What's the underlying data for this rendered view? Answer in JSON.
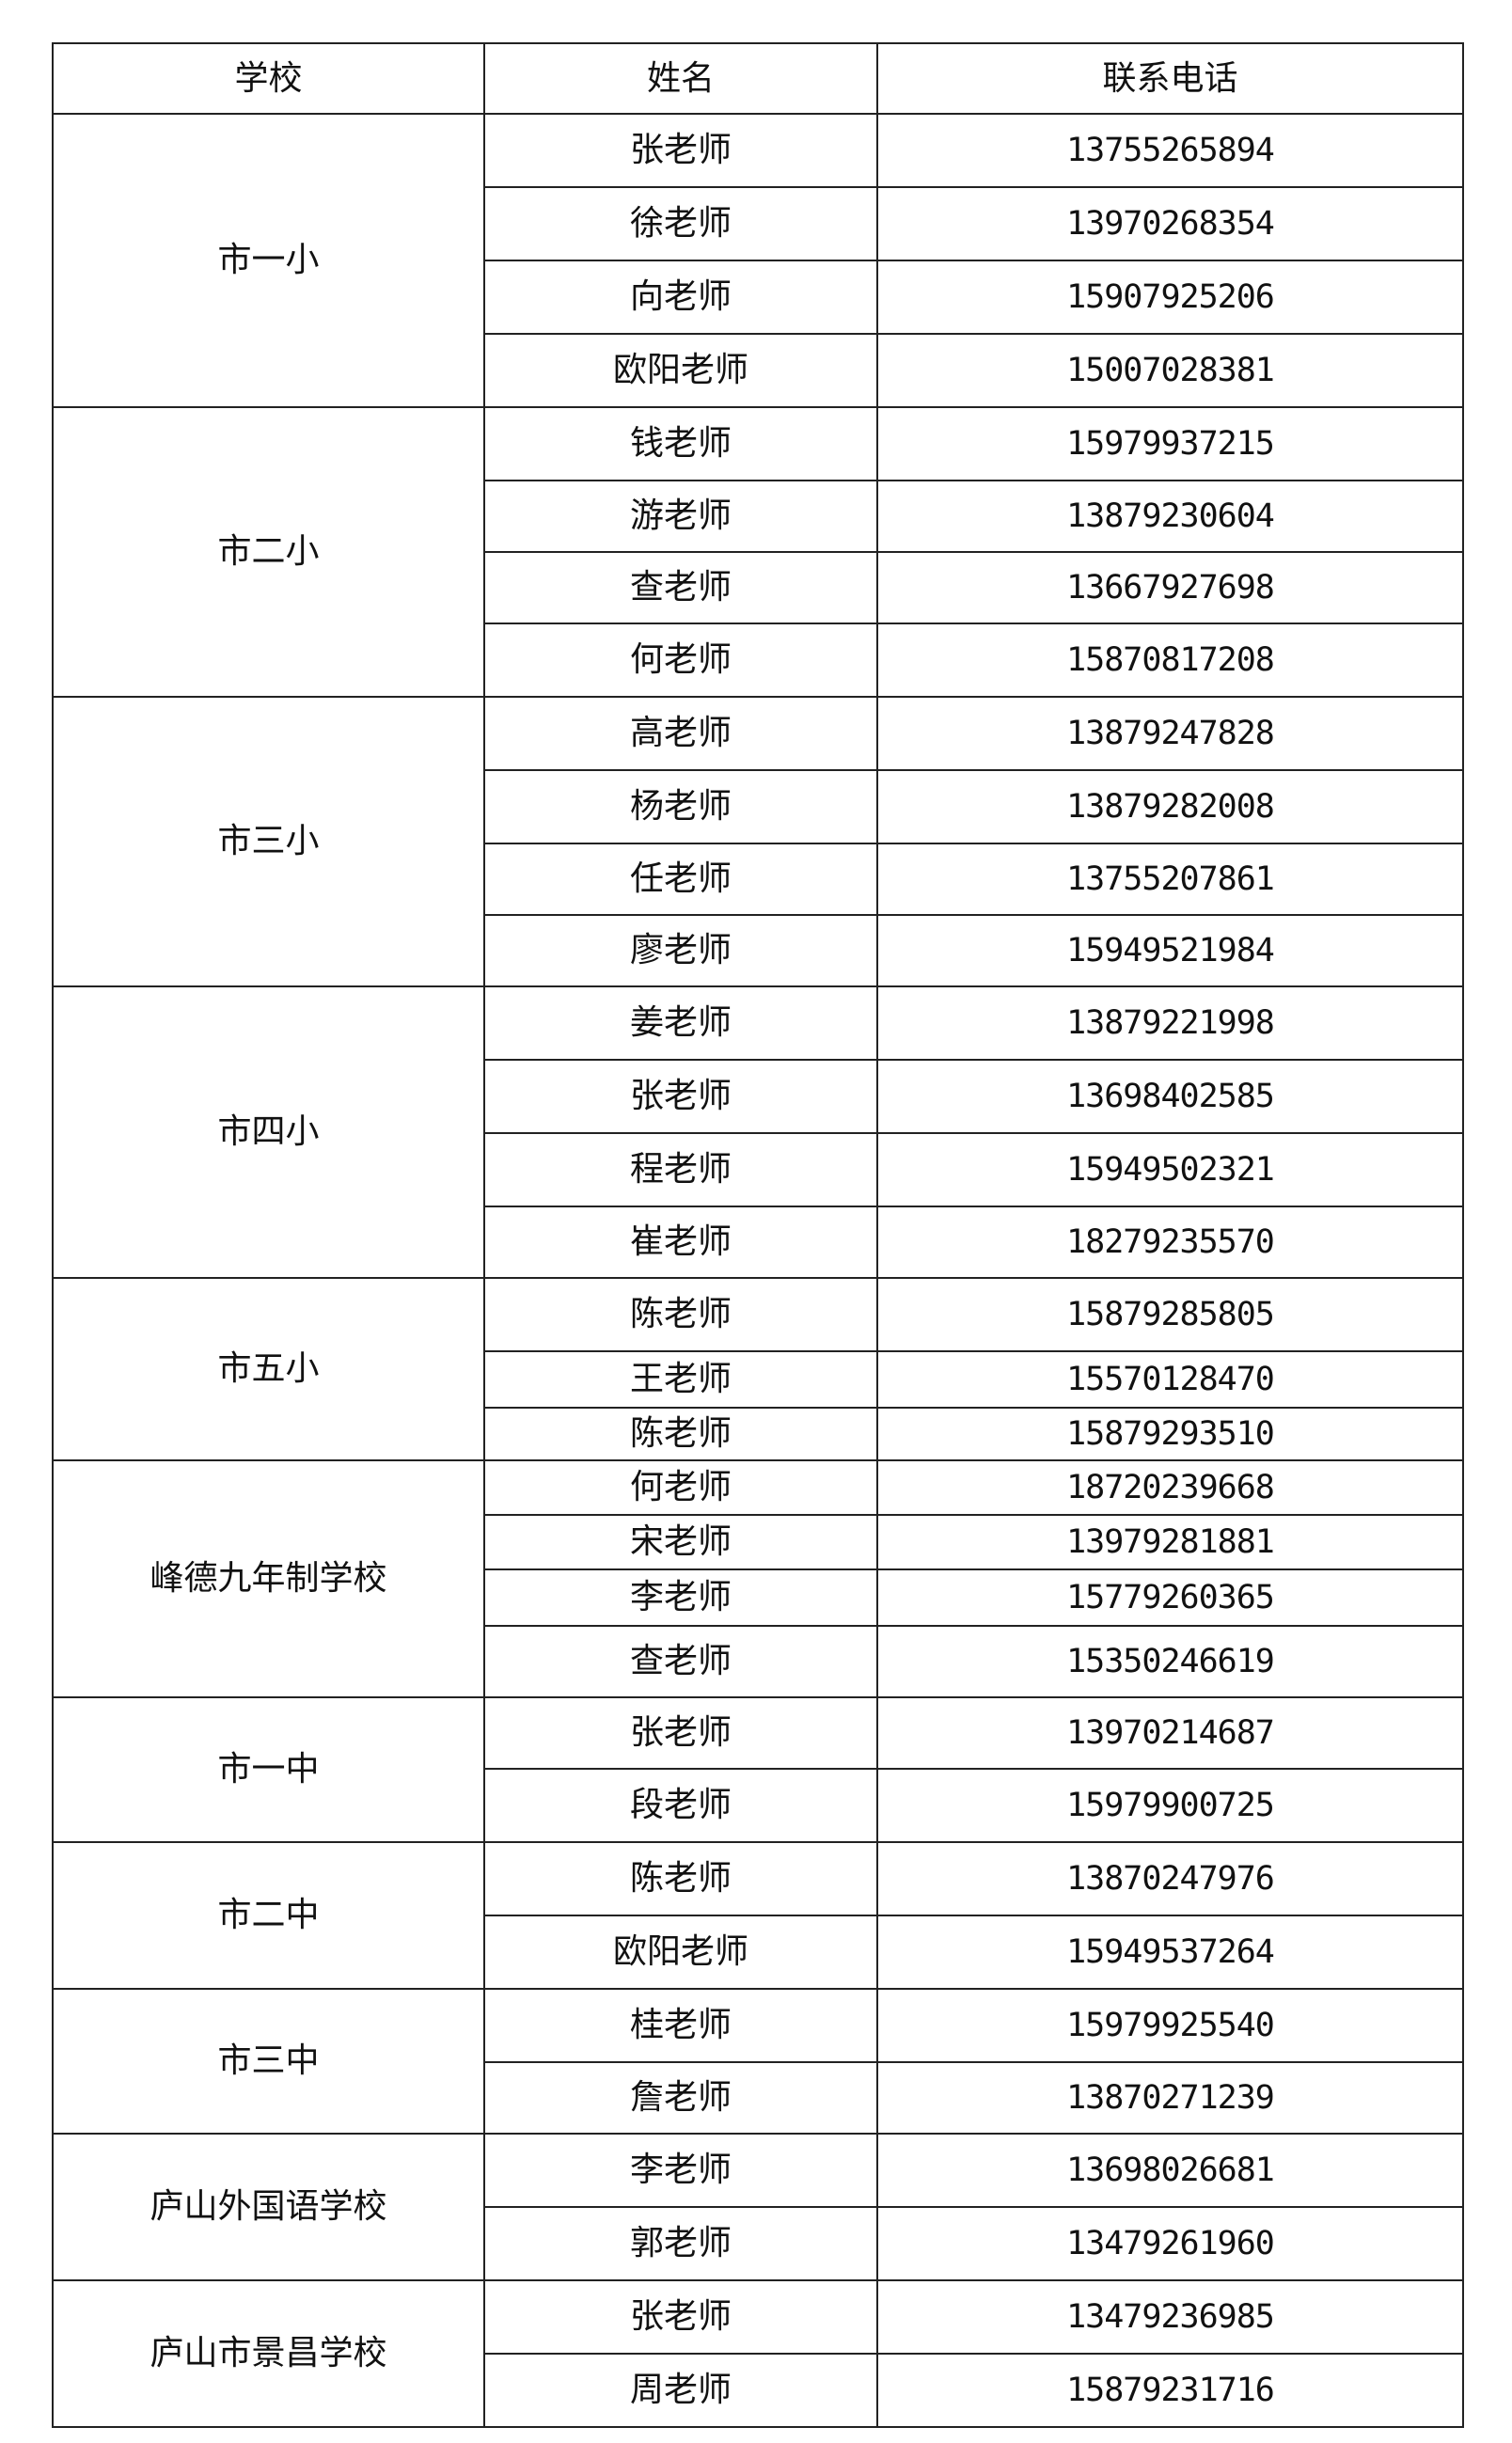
{
  "headers": {
    "school": "学校",
    "name": "姓名",
    "phone": "联系电话"
  },
  "groups": [
    {
      "school": "市一小",
      "contacts": [
        {
          "name": "张老师",
          "phone": "13755265894"
        },
        {
          "name": "徐老师",
          "phone": "13970268354"
        },
        {
          "name": "向老师",
          "phone": "15907925206"
        },
        {
          "name": "欧阳老师",
          "phone": "15007028381"
        }
      ]
    },
    {
      "school": "市二小",
      "contacts": [
        {
          "name": "钱老师",
          "phone": "15979937215"
        },
        {
          "name": "游老师",
          "phone": "13879230604"
        },
        {
          "name": "查老师",
          "phone": "13667927698"
        },
        {
          "name": "何老师",
          "phone": "15870817208"
        }
      ]
    },
    {
      "school": "市三小",
      "contacts": [
        {
          "name": "高老师",
          "phone": "13879247828"
        },
        {
          "name": "杨老师",
          "phone": "13879282008"
        },
        {
          "name": "任老师",
          "phone": "13755207861"
        },
        {
          "name": "廖老师",
          "phone": "15949521984"
        }
      ]
    },
    {
      "school": "市四小",
      "contacts": [
        {
          "name": "姜老师",
          "phone": "13879221998"
        },
        {
          "name": "张老师",
          "phone": "13698402585"
        },
        {
          "name": "程老师",
          "phone": "15949502321"
        },
        {
          "name": "崔老师",
          "phone": "18279235570"
        }
      ]
    },
    {
      "school": "市五小",
      "contacts": [
        {
          "name": "陈老师",
          "phone": "15879285805"
        },
        {
          "name": "王老师",
          "phone": "15570128470"
        },
        {
          "name": "陈老师",
          "phone": "15879293510"
        }
      ]
    },
    {
      "school": "峰德九年制学校",
      "contacts": [
        {
          "name": "何老师",
          "phone": "18720239668"
        },
        {
          "name": "宋老师",
          "phone": "13979281881"
        },
        {
          "name": "李老师",
          "phone": "15779260365"
        },
        {
          "name": "查老师",
          "phone": "15350246619"
        }
      ]
    },
    {
      "school": "市一中",
      "contacts": [
        {
          "name": "张老师",
          "phone": "13970214687"
        },
        {
          "name": "段老师",
          "phone": "15979900725"
        }
      ]
    },
    {
      "school": "市二中",
      "contacts": [
        {
          "name": "陈老师",
          "phone": "13870247976"
        },
        {
          "name": "欧阳老师",
          "phone": "15949537264"
        }
      ]
    },
    {
      "school": "市三中",
      "contacts": [
        {
          "name": "桂老师",
          "phone": "15979925540"
        },
        {
          "name": "詹老师",
          "phone": "13870271239"
        }
      ]
    },
    {
      "school": "庐山外国语学校",
      "contacts": [
        {
          "name": "李老师",
          "phone": "13698026681"
        },
        {
          "name": "郭老师",
          "phone": "13479261960"
        }
      ]
    },
    {
      "school": "庐山市景昌学校",
      "contacts": [
        {
          "name": "张老师",
          "phone": "13479236985"
        },
        {
          "name": "周老师",
          "phone": "15879231716"
        }
      ]
    }
  ]
}
